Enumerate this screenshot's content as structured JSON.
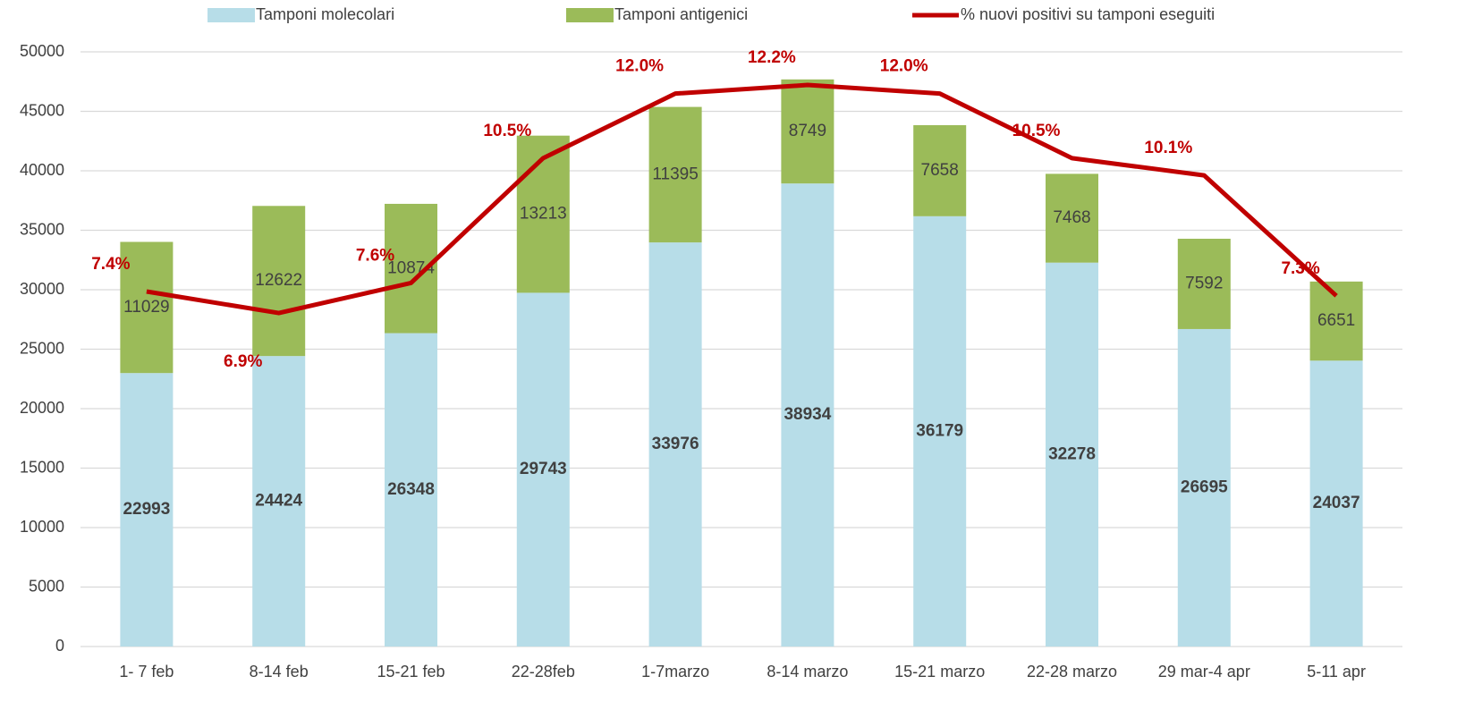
{
  "chart_data": {
    "type": "bar",
    "stacked": true,
    "categories": [
      "1- 7 feb",
      "8-14 feb",
      "15-21 feb",
      "22-28feb",
      "1-7marzo",
      "8-14 marzo",
      "15-21 marzo",
      "22-28 marzo",
      "29 mar-4 apr",
      "5-11 apr"
    ],
    "series": [
      {
        "name": "Tamponi molecolari",
        "type": "bar",
        "color": "#b7dde8",
        "values": [
          22993,
          24424,
          26348,
          29743,
          33976,
          38934,
          36179,
          32278,
          26695,
          24037
        ]
      },
      {
        "name": "Tamponi antigenici",
        "type": "bar",
        "color": "#9bbb59",
        "values": [
          11029,
          12622,
          10874,
          13213,
          11395,
          8749,
          7658,
          7468,
          7592,
          6651
        ]
      },
      {
        "name": "% nuovi positivi su tamponi eseguiti",
        "type": "line",
        "axis": "y2",
        "color": "#c00000",
        "values": [
          7.4,
          6.9,
          7.6,
          10.5,
          12.0,
          12.2,
          12.0,
          10.5,
          10.1,
          7.3
        ],
        "value_labels": [
          "7.4%",
          "6.9%",
          "7.6%",
          "10.5%",
          "12.0%",
          "12.2%",
          "12.0%",
          "10.5%",
          "10.1%",
          "7.3%"
        ]
      }
    ],
    "ylim": [
      0,
      50000
    ],
    "yticks": [
      0,
      5000,
      10000,
      15000,
      20000,
      25000,
      30000,
      35000,
      40000,
      45000,
      50000
    ],
    "y2lim": [
      -0.85,
      12.97
    ],
    "grid": true,
    "legend": "top"
  }
}
